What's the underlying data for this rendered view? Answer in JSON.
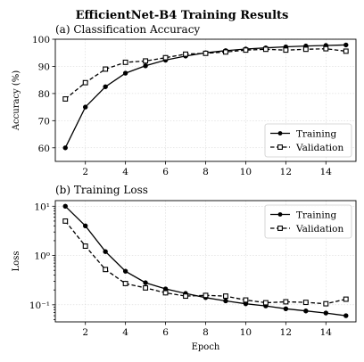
{
  "title": "EfficientNet-B4 Training Results",
  "chart_data": [
    {
      "type": "line",
      "title": "(a) Classification Accuracy",
      "xlabel": "",
      "ylabel": "Accuracy (%)",
      "xlim": [
        0.5,
        15.5
      ],
      "ylim": [
        55,
        100
      ],
      "yscale": "linear",
      "xticks": [
        2,
        4,
        6,
        8,
        10,
        12,
        14
      ],
      "yticks": [
        60,
        70,
        80,
        90,
        100
      ],
      "grid": true,
      "legend_position": "lower right",
      "x": [
        1,
        2,
        3,
        4,
        5,
        6,
        7,
        8,
        9,
        10,
        11,
        12,
        13,
        14,
        15
      ],
      "series": [
        {
          "name": "Training",
          "line": "solid",
          "marker": "filled-circle",
          "color": "#000000",
          "values": [
            60,
            75,
            82.5,
            87.5,
            90.2,
            92.3,
            93.8,
            95.0,
            95.8,
            96.4,
            96.8,
            97.2,
            97.5,
            97.7,
            97.9
          ]
        },
        {
          "name": "Validation",
          "line": "dashed",
          "marker": "open-square",
          "color": "#000000",
          "values": [
            78,
            84,
            89,
            91.5,
            92,
            93.2,
            94.5,
            94.8,
            95.3,
            96.0,
            96.3,
            96.0,
            96.3,
            96.5,
            95.6
          ]
        }
      ]
    },
    {
      "type": "line",
      "title": "(b) Training Loss",
      "xlabel": "Epoch",
      "ylabel": "Loss",
      "xlim": [
        0.5,
        15.5
      ],
      "ylim": [
        0.045,
        13
      ],
      "yscale": "log",
      "xticks": [
        2,
        4,
        6,
        8,
        10,
        12,
        14
      ],
      "yticks": [
        0.1,
        1,
        10
      ],
      "ytick_labels": [
        "10⁻¹",
        "10⁰",
        "10¹"
      ],
      "grid": true,
      "legend_position": "upper right",
      "x": [
        1,
        2,
        3,
        4,
        5,
        6,
        7,
        8,
        9,
        10,
        11,
        12,
        13,
        14,
        15
      ],
      "series": [
        {
          "name": "Training",
          "line": "solid",
          "marker": "filled-circle",
          "color": "#000000",
          "values": [
            10,
            4.0,
            1.2,
            0.48,
            0.28,
            0.21,
            0.17,
            0.14,
            0.12,
            0.105,
            0.095,
            0.083,
            0.075,
            0.068,
            0.06
          ]
        },
        {
          "name": "Validation",
          "line": "dashed",
          "marker": "open-square",
          "color": "#000000",
          "values": [
            5.0,
            1.55,
            0.52,
            0.27,
            0.22,
            0.175,
            0.15,
            0.155,
            0.15,
            0.125,
            0.11,
            0.115,
            0.112,
            0.105,
            0.13
          ]
        }
      ]
    }
  ]
}
